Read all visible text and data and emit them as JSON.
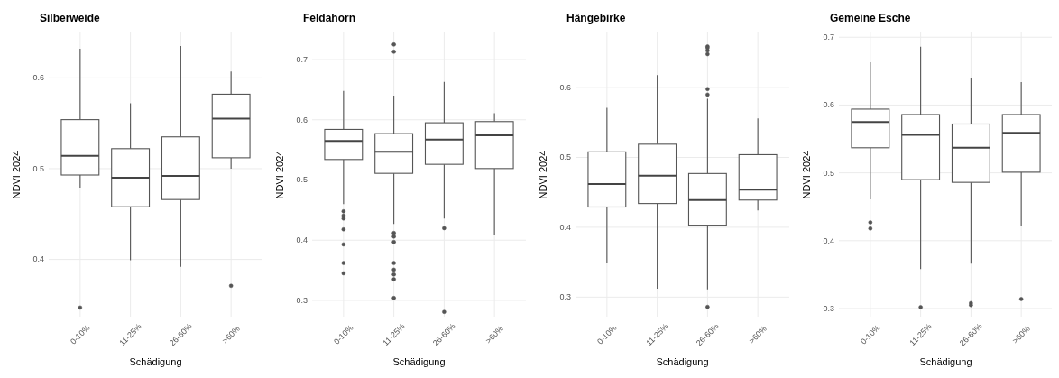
{
  "chart_data": [
    {
      "type": "box",
      "title": "Silberweide",
      "xlabel": "Schädigung",
      "ylabel": "NDVI 2024",
      "categories": [
        "0-10%",
        "11-25%",
        "26-60%",
        ">60%"
      ],
      "ylim": [
        0.337,
        0.65
      ],
      "yticks": [
        0.4,
        0.5,
        0.6
      ],
      "grid": true,
      "boxes": [
        {
          "low": 0.479,
          "q1": 0.493,
          "median": 0.514,
          "q3": 0.554,
          "high": 0.632,
          "outliers": [
            0.347
          ]
        },
        {
          "low": 0.399,
          "q1": 0.458,
          "median": 0.49,
          "q3": 0.522,
          "high": 0.572
        },
        {
          "low": 0.392,
          "q1": 0.466,
          "median": 0.492,
          "q3": 0.535,
          "high": 0.635
        },
        {
          "low": 0.5,
          "q1": 0.512,
          "median": 0.555,
          "q3": 0.582,
          "high": 0.607,
          "outliers": [
            0.371
          ]
        }
      ]
    },
    {
      "type": "box",
      "title": "Feldahorn",
      "xlabel": "Schädigung",
      "ylabel": "NDVI 2024",
      "categories": [
        "0-10%",
        "11-25%",
        "26-60%",
        ">60%"
      ],
      "ylim": [
        0.273,
        0.745
      ],
      "yticks": [
        0.3,
        0.4,
        0.5,
        0.6,
        0.7
      ],
      "grid": true,
      "boxes": [
        {
          "low": 0.46,
          "q1": 0.534,
          "median": 0.565,
          "q3": 0.584,
          "high": 0.648,
          "outliers": [
            0.448,
            0.441,
            0.436,
            0.418,
            0.393,
            0.362,
            0.345
          ]
        },
        {
          "low": 0.427,
          "q1": 0.511,
          "median": 0.547,
          "q3": 0.577,
          "high": 0.64,
          "outliers": [
            0.725,
            0.713,
            0.412,
            0.406,
            0.397,
            0.362,
            0.351,
            0.343,
            0.335,
            0.304
          ]
        },
        {
          "low": 0.436,
          "q1": 0.526,
          "median": 0.567,
          "q3": 0.595,
          "high": 0.663,
          "outliers": [
            0.42,
            0.281
          ]
        },
        {
          "low": 0.408,
          "q1": 0.519,
          "median": 0.574,
          "q3": 0.597,
          "high": 0.611
        }
      ]
    },
    {
      "type": "box",
      "title": "Hängebirke",
      "xlabel": "Schädigung",
      "ylabel": "NDVI 2024",
      "categories": [
        "0-10%",
        "11-25%",
        "26-60%",
        ">60%"
      ],
      "ylim": [
        0.272,
        0.679
      ],
      "yticks": [
        0.3,
        0.4,
        0.5,
        0.6
      ],
      "grid": true,
      "boxes": [
        {
          "low": 0.349,
          "q1": 0.429,
          "median": 0.462,
          "q3": 0.508,
          "high": 0.571
        },
        {
          "low": 0.312,
          "q1": 0.434,
          "median": 0.474,
          "q3": 0.519,
          "high": 0.618
        },
        {
          "low": 0.311,
          "q1": 0.403,
          "median": 0.439,
          "q3": 0.477,
          "high": 0.584,
          "outliers": [
            0.659,
            0.657,
            0.653,
            0.648,
            0.598,
            0.59,
            0.286
          ]
        },
        {
          "low": 0.424,
          "q1": 0.439,
          "median": 0.454,
          "q3": 0.504,
          "high": 0.556
        }
      ]
    },
    {
      "type": "box",
      "title": "Gemeine Esche",
      "xlabel": "Schädigung",
      "ylabel": "NDVI 2024",
      "categories": [
        "0-10%",
        "11-25%",
        "26-60%",
        ">60%"
      ],
      "ylim": [
        0.288,
        0.707
      ],
      "yticks": [
        0.3,
        0.4,
        0.5,
        0.6,
        0.7
      ],
      "grid": true,
      "boxes": [
        {
          "low": 0.461,
          "q1": 0.537,
          "median": 0.575,
          "q3": 0.594,
          "high": 0.663,
          "outliers": [
            0.427,
            0.418
          ]
        },
        {
          "low": 0.358,
          "q1": 0.49,
          "median": 0.556,
          "q3": 0.586,
          "high": 0.686,
          "outliers": [
            0.302
          ]
        },
        {
          "low": 0.366,
          "q1": 0.486,
          "median": 0.537,
          "q3": 0.572,
          "high": 0.64,
          "outliers": [
            0.308,
            0.305
          ]
        },
        {
          "low": 0.421,
          "q1": 0.501,
          "median": 0.559,
          "q3": 0.586,
          "high": 0.634,
          "outliers": [
            0.314
          ]
        }
      ]
    }
  ]
}
